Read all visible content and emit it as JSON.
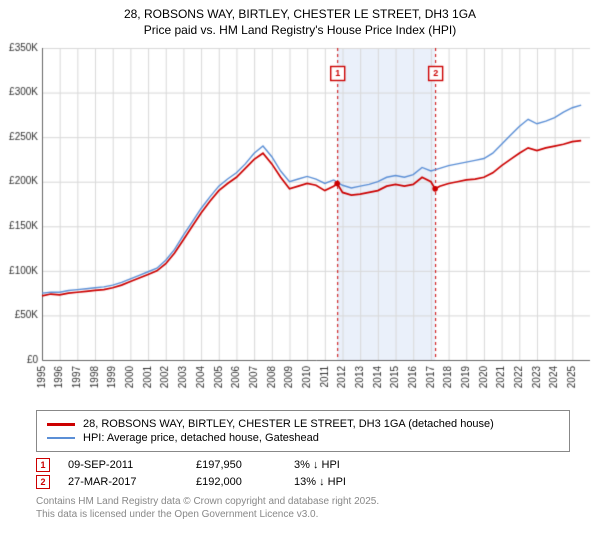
{
  "title": {
    "address": "28, ROBSONS WAY, BIRTLEY, CHESTER LE STREET, DH3 1GA",
    "subtitle": "Price paid vs. HM Land Registry's House Price Index (HPI)"
  },
  "chart": {
    "type": "line",
    "background_color": "#ffffff",
    "plot_background": "#ffffff",
    "grid_color": "#d9d9d9",
    "axis_color": "#666666",
    "tick_font_size": 10,
    "tick_color": "#333333",
    "x": {
      "min": 1995,
      "max": 2026,
      "ticks": [
        1995,
        1996,
        1997,
        1998,
        1999,
        2000,
        2001,
        2002,
        2003,
        2004,
        2005,
        2006,
        2007,
        2008,
        2009,
        2010,
        2011,
        2012,
        2013,
        2014,
        2015,
        2016,
        2017,
        2018,
        2019,
        2020,
        2021,
        2022,
        2023,
        2024,
        2025
      ],
      "label_rotation": -90
    },
    "y": {
      "min": 0,
      "max": 350000,
      "tick_step": 50000,
      "labels": [
        "£0",
        "£50K",
        "£100K",
        "£150K",
        "£200K",
        "£250K",
        "£300K",
        "£350K"
      ]
    },
    "shaded_band": {
      "x_from": 2011.7,
      "x_to": 2017.24,
      "fill": "#eaf0fa"
    },
    "series": [
      {
        "id": "price_paid",
        "label": "28, ROBSONS WAY, BIRTLEY, CHESTER LE STREET, DH3 1GA (detached house)",
        "color": "#cc0000",
        "line_width": 1.7,
        "data": [
          [
            1995.0,
            72000
          ],
          [
            1995.5,
            74000
          ],
          [
            1996.0,
            73000
          ],
          [
            1996.5,
            75000
          ],
          [
            1997.0,
            76000
          ],
          [
            1997.5,
            77000
          ],
          [
            1998.0,
            78000
          ],
          [
            1998.5,
            79000
          ],
          [
            1999.0,
            81000
          ],
          [
            1999.5,
            84000
          ],
          [
            2000.0,
            88000
          ],
          [
            2000.5,
            92000
          ],
          [
            2001.0,
            96000
          ],
          [
            2001.5,
            100000
          ],
          [
            2002.0,
            108000
          ],
          [
            2002.5,
            120000
          ],
          [
            2003.0,
            135000
          ],
          [
            2003.5,
            150000
          ],
          [
            2004.0,
            165000
          ],
          [
            2004.5,
            178000
          ],
          [
            2005.0,
            190000
          ],
          [
            2005.5,
            198000
          ],
          [
            2006.0,
            205000
          ],
          [
            2006.5,
            215000
          ],
          [
            2007.0,
            225000
          ],
          [
            2007.5,
            232000
          ],
          [
            2008.0,
            220000
          ],
          [
            2008.5,
            205000
          ],
          [
            2009.0,
            192000
          ],
          [
            2009.5,
            195000
          ],
          [
            2010.0,
            198000
          ],
          [
            2010.5,
            196000
          ],
          [
            2011.0,
            190000
          ],
          [
            2011.5,
            195000
          ],
          [
            2011.7,
            197950
          ],
          [
            2012.0,
            188000
          ],
          [
            2012.5,
            185000
          ],
          [
            2013.0,
            186000
          ],
          [
            2013.5,
            188000
          ],
          [
            2014.0,
            190000
          ],
          [
            2014.5,
            195000
          ],
          [
            2015.0,
            197000
          ],
          [
            2015.5,
            195000
          ],
          [
            2016.0,
            197000
          ],
          [
            2016.5,
            205000
          ],
          [
            2017.0,
            200000
          ],
          [
            2017.24,
            192000
          ],
          [
            2017.5,
            195000
          ],
          [
            2018.0,
            198000
          ],
          [
            2018.5,
            200000
          ],
          [
            2019.0,
            202000
          ],
          [
            2019.5,
            203000
          ],
          [
            2020.0,
            205000
          ],
          [
            2020.5,
            210000
          ],
          [
            2021.0,
            218000
          ],
          [
            2021.5,
            225000
          ],
          [
            2022.0,
            232000
          ],
          [
            2022.5,
            238000
          ],
          [
            2023.0,
            235000
          ],
          [
            2023.5,
            238000
          ],
          [
            2024.0,
            240000
          ],
          [
            2024.5,
            242000
          ],
          [
            2025.0,
            245000
          ],
          [
            2025.5,
            246000
          ]
        ]
      },
      {
        "id": "hpi",
        "label": "HPI: Average price, detached house, Gateshead",
        "color": "#5b8fd6",
        "line_width": 1.4,
        "data": [
          [
            1995.0,
            75000
          ],
          [
            1995.5,
            76000
          ],
          [
            1996.0,
            76000
          ],
          [
            1996.5,
            78000
          ],
          [
            1997.0,
            79000
          ],
          [
            1997.5,
            80000
          ],
          [
            1998.0,
            81000
          ],
          [
            1998.5,
            82000
          ],
          [
            1999.0,
            84000
          ],
          [
            1999.5,
            87000
          ],
          [
            2000.0,
            91000
          ],
          [
            2000.5,
            95000
          ],
          [
            2001.0,
            99000
          ],
          [
            2001.5,
            103000
          ],
          [
            2002.0,
            112000
          ],
          [
            2002.5,
            124000
          ],
          [
            2003.0,
            140000
          ],
          [
            2003.5,
            155000
          ],
          [
            2004.0,
            170000
          ],
          [
            2004.5,
            183000
          ],
          [
            2005.0,
            195000
          ],
          [
            2005.5,
            203000
          ],
          [
            2006.0,
            210000
          ],
          [
            2006.5,
            220000
          ],
          [
            2007.0,
            232000
          ],
          [
            2007.5,
            240000
          ],
          [
            2008.0,
            228000
          ],
          [
            2008.5,
            212000
          ],
          [
            2009.0,
            200000
          ],
          [
            2009.5,
            203000
          ],
          [
            2010.0,
            206000
          ],
          [
            2010.5,
            203000
          ],
          [
            2011.0,
            198000
          ],
          [
            2011.5,
            202000
          ],
          [
            2012.0,
            196000
          ],
          [
            2012.5,
            193000
          ],
          [
            2013.0,
            195000
          ],
          [
            2013.5,
            197000
          ],
          [
            2014.0,
            200000
          ],
          [
            2014.5,
            205000
          ],
          [
            2015.0,
            207000
          ],
          [
            2015.5,
            205000
          ],
          [
            2016.0,
            208000
          ],
          [
            2016.5,
            216000
          ],
          [
            2017.0,
            212000
          ],
          [
            2017.5,
            215000
          ],
          [
            2018.0,
            218000
          ],
          [
            2018.5,
            220000
          ],
          [
            2019.0,
            222000
          ],
          [
            2019.5,
            224000
          ],
          [
            2020.0,
            226000
          ],
          [
            2020.5,
            232000
          ],
          [
            2021.0,
            242000
          ],
          [
            2021.5,
            252000
          ],
          [
            2022.0,
            262000
          ],
          [
            2022.5,
            270000
          ],
          [
            2023.0,
            265000
          ],
          [
            2023.5,
            268000
          ],
          [
            2024.0,
            272000
          ],
          [
            2024.5,
            278000
          ],
          [
            2025.0,
            283000
          ],
          [
            2025.5,
            286000
          ]
        ]
      }
    ],
    "markers": [
      {
        "n": "1",
        "x": 2011.7,
        "y": 197950,
        "line_color": "#cc0000",
        "dash": [
          3,
          3
        ]
      },
      {
        "n": "2",
        "x": 2017.24,
        "y": 192000,
        "line_color": "#cc0000",
        "dash": [
          3,
          3
        ]
      }
    ],
    "marker_box": {
      "border": "#cc0000",
      "text": "#cc0000",
      "size": 14,
      "font_size": 9
    },
    "point_style": {
      "radius": 2.8,
      "fill": "#cc0000"
    }
  },
  "sales": [
    {
      "n": "1",
      "date": "09-SEP-2011",
      "price": "£197,950",
      "delta": "3% ↓ HPI"
    },
    {
      "n": "2",
      "date": "27-MAR-2017",
      "price": "£192,000",
      "delta": "13% ↓ HPI"
    }
  ],
  "footer": {
    "line1": "Contains HM Land Registry data © Crown copyright and database right 2025.",
    "line2": "This data is licensed under the Open Government Licence v3.0."
  }
}
